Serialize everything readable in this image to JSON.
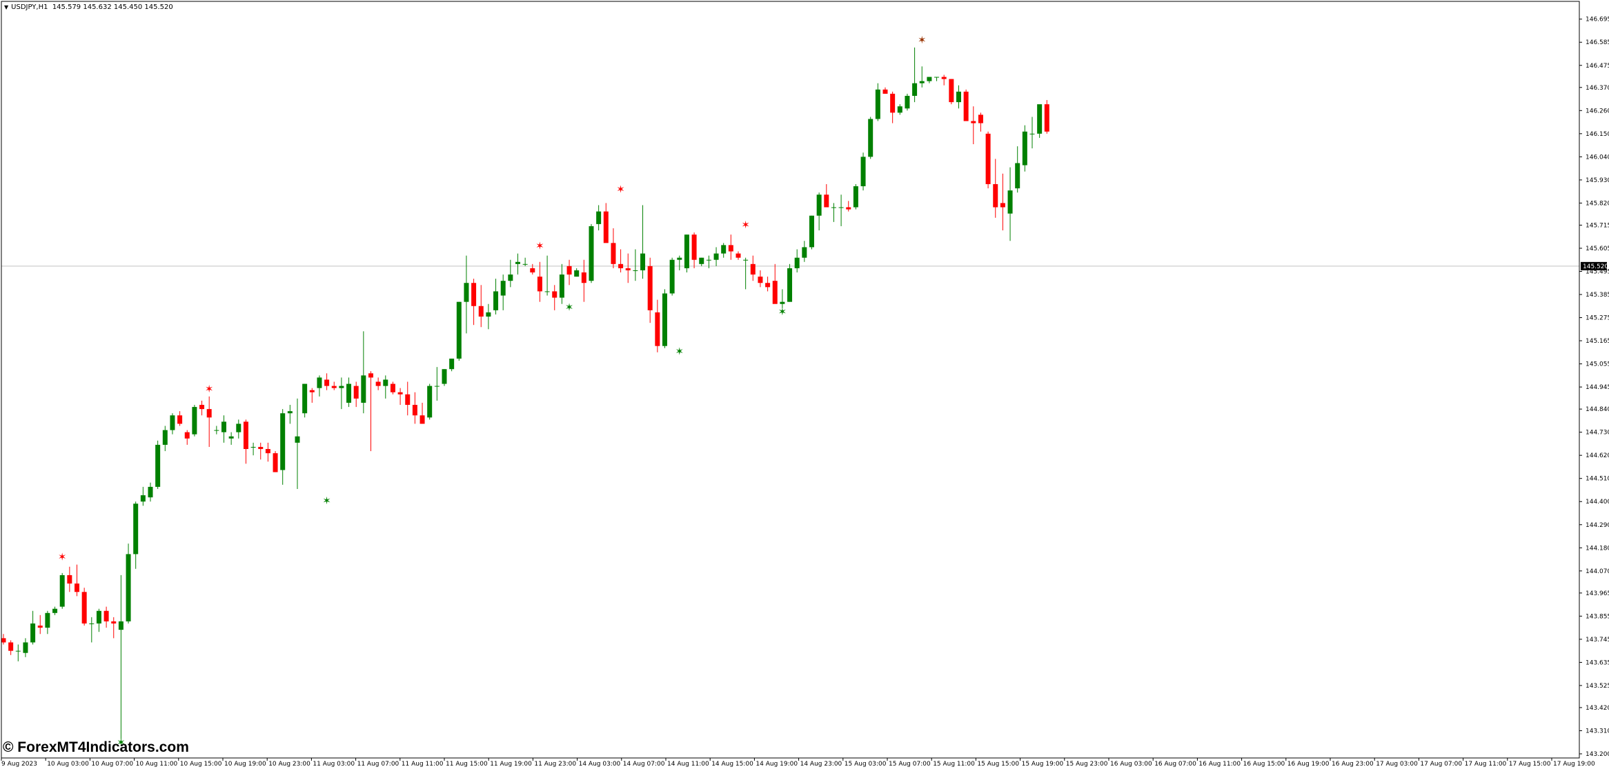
{
  "window": {
    "symbol_timeframe": "USDJPY,H1",
    "ohlc": "145.579 145.632 145.450 145.520"
  },
  "watermark": "© ForexMT4Indicators.com",
  "colors": {
    "background": "#ffffff",
    "axis": "#000000",
    "bull": "#008000",
    "bear": "#ff0000",
    "price_line": "#c0c0c0",
    "signal_top_bear": "#ff0000",
    "signal_top_peak": "#993300",
    "signal_bottom_bull": "#008000"
  },
  "chart_data": {
    "type": "candlestick",
    "price_range": [
      143.2,
      146.74
    ],
    "current_price": "145.520",
    "y_ticks": [
      "146.695",
      "146.585",
      "146.475",
      "146.370",
      "146.260",
      "146.150",
      "146.040",
      "145.930",
      "145.820",
      "145.715",
      "145.605",
      "145.495",
      "145.385",
      "145.275",
      "145.165",
      "145.055",
      "144.945",
      "144.840",
      "144.730",
      "144.620",
      "144.510",
      "144.400",
      "144.290",
      "144.180",
      "144.070",
      "143.965",
      "143.855",
      "143.745",
      "143.635",
      "143.525",
      "143.420",
      "143.310",
      "143.200"
    ],
    "x_ticks": [
      "9 Aug 2023",
      "10 Aug 03:00",
      "10 Aug 07:00",
      "10 Aug 11:00",
      "10 Aug 15:00",
      "10 Aug 19:00",
      "10 Aug 23:00",
      "11 Aug 03:00",
      "11 Aug 07:00",
      "11 Aug 11:00",
      "11 Aug 15:00",
      "11 Aug 19:00",
      "11 Aug 23:00",
      "14 Aug 03:00",
      "14 Aug 07:00",
      "14 Aug 11:00",
      "14 Aug 15:00",
      "14 Aug 19:00",
      "14 Aug 23:00",
      "15 Aug 03:00",
      "15 Aug 07:00",
      "15 Aug 11:00",
      "15 Aug 15:00",
      "15 Aug 19:00",
      "15 Aug 23:00",
      "16 Aug 03:00",
      "16 Aug 07:00",
      "16 Aug 11:00",
      "16 Aug 15:00",
      "16 Aug 19:00",
      "16 Aug 23:00",
      "17 Aug 03:00",
      "17 Aug 07:00",
      "17 Aug 11:00",
      "17 Aug 15:00",
      "17 Aug 19:00"
    ],
    "candles": [
      [
        143.75,
        143.77,
        143.72,
        143.73
      ],
      [
        143.73,
        143.74,
        143.67,
        143.69
      ],
      [
        143.69,
        143.72,
        143.64,
        143.69
      ],
      [
        143.68,
        143.75,
        143.66,
        143.73
      ],
      [
        143.73,
        143.88,
        143.72,
        143.82
      ],
      [
        143.81,
        143.86,
        143.77,
        143.8
      ],
      [
        143.8,
        143.88,
        143.77,
        143.87
      ],
      [
        143.87,
        143.9,
        143.86,
        143.89
      ],
      [
        143.9,
        144.06,
        143.89,
        144.05
      ],
      [
        144.05,
        144.09,
        143.97,
        144.01
      ],
      [
        144.01,
        144.1,
        143.95,
        143.97
      ],
      [
        143.97,
        143.99,
        143.81,
        143.82
      ],
      [
        143.82,
        143.85,
        143.73,
        143.82
      ],
      [
        143.82,
        143.89,
        143.78,
        143.88
      ],
      [
        143.88,
        143.9,
        143.8,
        143.83
      ],
      [
        143.83,
        143.85,
        143.75,
        143.82
      ],
      [
        143.79,
        144.05,
        143.27,
        143.83
      ],
      [
        143.83,
        144.2,
        143.82,
        144.15
      ],
      [
        144.15,
        144.4,
        144.08,
        144.39
      ],
      [
        144.4,
        144.47,
        144.38,
        144.43
      ],
      [
        144.42,
        144.49,
        144.4,
        144.47
      ],
      [
        144.47,
        144.69,
        144.46,
        144.67
      ],
      [
        144.67,
        144.76,
        144.64,
        144.74
      ],
      [
        144.74,
        144.82,
        144.72,
        144.81
      ],
      [
        144.81,
        144.83,
        144.76,
        144.77
      ],
      [
        144.73,
        144.74,
        144.67,
        144.7
      ],
      [
        144.72,
        144.86,
        144.71,
        144.85
      ],
      [
        144.86,
        144.88,
        144.81,
        144.84
      ],
      [
        144.84,
        144.9,
        144.66,
        144.8
      ],
      [
        144.74,
        144.76,
        144.72,
        144.74
      ],
      [
        144.73,
        144.81,
        144.68,
        144.78
      ],
      [
        144.7,
        144.73,
        144.67,
        144.71
      ],
      [
        144.73,
        144.79,
        144.7,
        144.77
      ],
      [
        144.78,
        144.79,
        144.58,
        144.65
      ],
      [
        144.66,
        144.68,
        144.62,
        144.66
      ],
      [
        144.66,
        144.68,
        144.6,
        144.65
      ],
      [
        144.65,
        144.68,
        144.59,
        144.63
      ],
      [
        144.63,
        144.64,
        144.54,
        144.54
      ],
      [
        144.55,
        144.84,
        144.48,
        144.82
      ],
      [
        144.82,
        144.86,
        144.77,
        144.83
      ],
      [
        144.68,
        144.89,
        144.46,
        144.71
      ],
      [
        144.82,
        144.96,
        144.8,
        144.96
      ],
      [
        144.93,
        144.94,
        144.87,
        144.92
      ],
      [
        144.94,
        145.0,
        144.9,
        144.99
      ],
      [
        144.98,
        145.01,
        144.93,
        144.95
      ],
      [
        144.95,
        144.97,
        144.93,
        144.94
      ],
      [
        144.94,
        144.99,
        144.84,
        144.95
      ],
      [
        144.87,
        144.99,
        144.85,
        144.96
      ],
      [
        144.95,
        144.97,
        144.85,
        144.89
      ],
      [
        144.87,
        145.21,
        144.82,
        145.0
      ],
      [
        145.01,
        145.02,
        144.64,
        144.99
      ],
      [
        144.97,
        144.99,
        144.93,
        144.95
      ],
      [
        144.95,
        145.0,
        144.89,
        144.98
      ],
      [
        144.96,
        144.97,
        144.91,
        144.92
      ],
      [
        144.92,
        144.94,
        144.86,
        144.91
      ],
      [
        144.91,
        144.97,
        144.81,
        144.86
      ],
      [
        144.86,
        144.92,
        144.77,
        144.81
      ],
      [
        144.81,
        144.87,
        144.77,
        144.77
      ],
      [
        144.8,
        144.96,
        144.79,
        144.95
      ],
      [
        144.95,
        145.04,
        144.88,
        144.95
      ],
      [
        144.96,
        145.03,
        144.95,
        145.03
      ],
      [
        145.03,
        145.08,
        145.02,
        145.08
      ],
      [
        145.08,
        145.35,
        145.07,
        145.35
      ],
      [
        145.35,
        145.57,
        145.2,
        145.44
      ],
      [
        145.44,
        145.46,
        145.24,
        145.33
      ],
      [
        145.33,
        145.43,
        145.23,
        145.28
      ],
      [
        145.28,
        145.34,
        145.22,
        145.3
      ],
      [
        145.31,
        145.46,
        145.29,
        145.4
      ],
      [
        145.38,
        145.48,
        145.31,
        145.45
      ],
      [
        145.45,
        145.55,
        145.42,
        145.48
      ],
      [
        145.53,
        145.58,
        145.48,
        145.54
      ],
      [
        145.53,
        145.56,
        145.52,
        145.53
      ],
      [
        145.51,
        145.53,
        145.48,
        145.49
      ],
      [
        145.47,
        145.54,
        145.35,
        145.4
      ],
      [
        145.4,
        145.57,
        145.38,
        145.4
      ],
      [
        145.4,
        145.43,
        145.31,
        145.37
      ],
      [
        145.37,
        145.53,
        145.34,
        145.48
      ],
      [
        145.52,
        145.55,
        145.43,
        145.48
      ],
      [
        145.47,
        145.51,
        145.47,
        145.5
      ],
      [
        145.49,
        145.55,
        145.35,
        145.44
      ],
      [
        145.45,
        145.72,
        145.44,
        145.71
      ],
      [
        145.72,
        145.81,
        145.69,
        145.78
      ],
      [
        145.78,
        145.82,
        145.64,
        145.63
      ],
      [
        145.63,
        145.7,
        145.51,
        145.53
      ],
      [
        145.53,
        145.6,
        145.49,
        145.51
      ],
      [
        145.51,
        145.58,
        145.44,
        145.5
      ],
      [
        145.5,
        145.6,
        145.45,
        145.5
      ],
      [
        145.5,
        145.81,
        145.46,
        145.58
      ],
      [
        145.52,
        145.56,
        145.25,
        145.31
      ],
      [
        145.3,
        145.36,
        145.11,
        145.14
      ],
      [
        145.14,
        145.41,
        145.13,
        145.39
      ],
      [
        145.39,
        145.56,
        145.38,
        145.55
      ],
      [
        145.55,
        145.57,
        145.5,
        145.56
      ],
      [
        145.51,
        145.67,
        145.49,
        145.67
      ],
      [
        145.67,
        145.68,
        145.51,
        145.55
      ],
      [
        145.53,
        145.56,
        145.52,
        145.56
      ],
      [
        145.55,
        145.57,
        145.51,
        145.55
      ],
      [
        145.55,
        145.61,
        145.52,
        145.58
      ],
      [
        145.58,
        145.63,
        145.56,
        145.62
      ],
      [
        145.62,
        145.67,
        145.55,
        145.59
      ],
      [
        145.58,
        145.59,
        145.55,
        145.56
      ],
      [
        145.55,
        145.56,
        145.41,
        145.55
      ],
      [
        145.53,
        145.57,
        145.45,
        145.48
      ],
      [
        145.47,
        145.5,
        145.42,
        145.44
      ],
      [
        145.44,
        145.47,
        145.4,
        145.42
      ],
      [
        145.45,
        145.53,
        145.36,
        145.34
      ],
      [
        145.34,
        145.41,
        145.32,
        145.35
      ],
      [
        145.35,
        145.53,
        145.35,
        145.51
      ],
      [
        145.51,
        145.6,
        145.49,
        145.56
      ],
      [
        145.56,
        145.64,
        145.54,
        145.61
      ],
      [
        145.61,
        145.76,
        145.6,
        145.76
      ],
      [
        145.76,
        145.87,
        145.69,
        145.86
      ],
      [
        145.86,
        145.91,
        145.81,
        145.8
      ],
      [
        145.8,
        145.82,
        145.73,
        145.8
      ],
      [
        145.8,
        145.86,
        145.71,
        145.8
      ],
      [
        145.8,
        145.83,
        145.78,
        145.79
      ],
      [
        145.8,
        145.91,
        145.79,
        145.9
      ],
      [
        145.9,
        146.06,
        145.88,
        146.04
      ],
      [
        146.04,
        146.23,
        146.03,
        146.22
      ],
      [
        146.22,
        146.39,
        146.21,
        146.36
      ],
      [
        146.36,
        146.37,
        146.34,
        146.34
      ],
      [
        146.34,
        146.35,
        146.2,
        146.25
      ],
      [
        146.25,
        146.29,
        146.24,
        146.28
      ],
      [
        146.27,
        146.34,
        146.26,
        146.33
      ],
      [
        146.33,
        146.56,
        146.3,
        146.39
      ],
      [
        146.39,
        146.47,
        146.37,
        146.4
      ],
      [
        146.4,
        146.42,
        146.39,
        146.42
      ],
      [
        146.42,
        146.42,
        146.4,
        146.42
      ],
      [
        146.42,
        146.43,
        146.38,
        146.41
      ],
      [
        146.41,
        146.41,
        146.29,
        146.3
      ],
      [
        146.3,
        146.38,
        146.27,
        146.35
      ],
      [
        146.35,
        146.36,
        146.22,
        146.21
      ],
      [
        146.21,
        146.28,
        146.1,
        146.2
      ],
      [
        146.24,
        146.25,
        146.16,
        146.2
      ],
      [
        146.15,
        146.16,
        145.89,
        145.91
      ],
      [
        145.91,
        146.03,
        145.75,
        145.8
      ],
      [
        145.82,
        145.96,
        145.69,
        145.8
      ],
      [
        145.77,
        145.99,
        145.64,
        145.88
      ],
      [
        145.89,
        146.09,
        145.87,
        146.01
      ],
      [
        146.0,
        146.19,
        145.97,
        146.16
      ],
      [
        146.15,
        146.23,
        146.08,
        146.15
      ],
      [
        146.15,
        146.28,
        146.13,
        146.29
      ],
      [
        146.29,
        146.31,
        146.15,
        146.16
      ]
    ],
    "signals": [
      {
        "index": 8,
        "type": "top",
        "price": 144.1
      },
      {
        "index": 16,
        "type": "bottom",
        "price": 143.27
      },
      {
        "index": 28,
        "type": "top",
        "price": 144.9
      },
      {
        "index": 44,
        "type": "bottom",
        "price": 144.42
      },
      {
        "index": 73,
        "type": "top",
        "price": 145.58
      },
      {
        "index": 77,
        "type": "bottom",
        "price": 145.34
      },
      {
        "index": 84,
        "type": "top",
        "price": 145.85
      },
      {
        "index": 92,
        "type": "bottom",
        "price": 145.13
      },
      {
        "index": 101,
        "type": "top",
        "price": 145.68
      },
      {
        "index": 106,
        "type": "bottom",
        "price": 145.32
      },
      {
        "index": 125,
        "type": "peak",
        "price": 146.56
      }
    ]
  }
}
